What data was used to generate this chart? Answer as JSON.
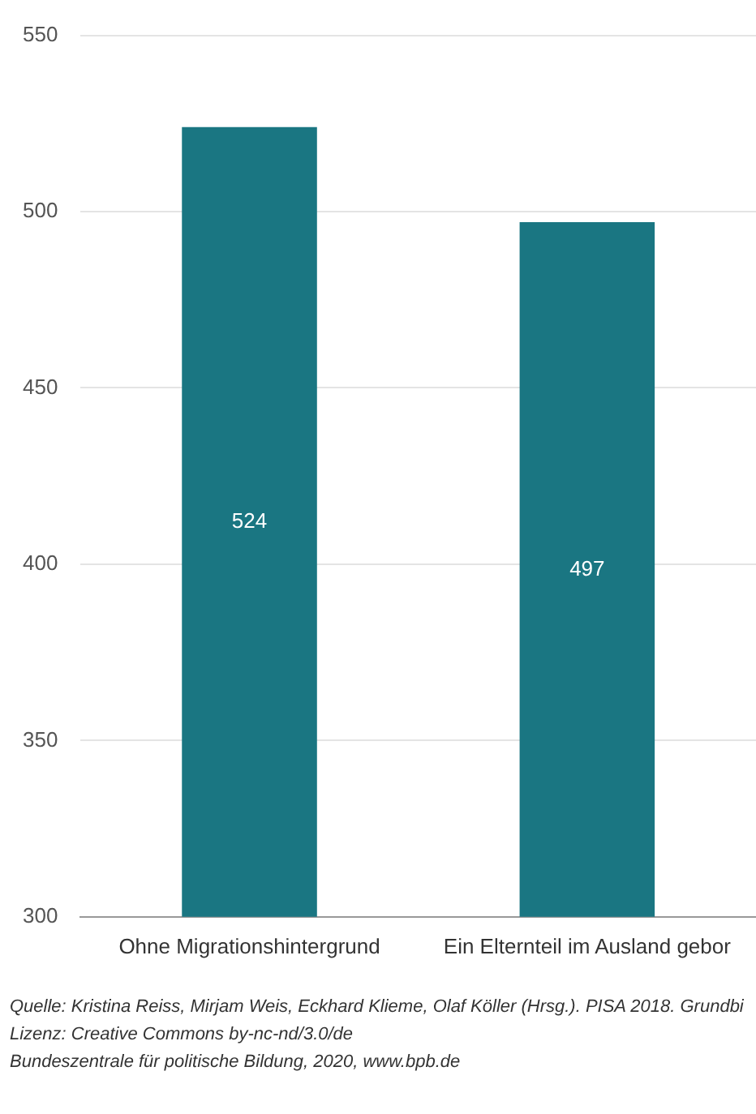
{
  "chart_data": {
    "type": "bar",
    "categories": [
      "Ohne Migrationshintergrund",
      "Ein Elternteil im Ausland gebor"
    ],
    "values": [
      524,
      497
    ],
    "color": "#1a7682",
    "ylim": [
      300,
      550
    ],
    "yticks": [
      300,
      350,
      400,
      450,
      500,
      550
    ],
    "grid": "y",
    "legend": false,
    "data_labels": true,
    "annotations": [
      "Quelle: Kristina Reiss, Mirjam Weis, Eckhard Klieme, Olaf Köller (Hrsg.). PISA 2018. Grundbi",
      "Lizenz: Creative Commons by-nc-nd/3.0/de",
      "Bundeszentrale für politische Bildung, 2020, www.bpb.de"
    ]
  }
}
